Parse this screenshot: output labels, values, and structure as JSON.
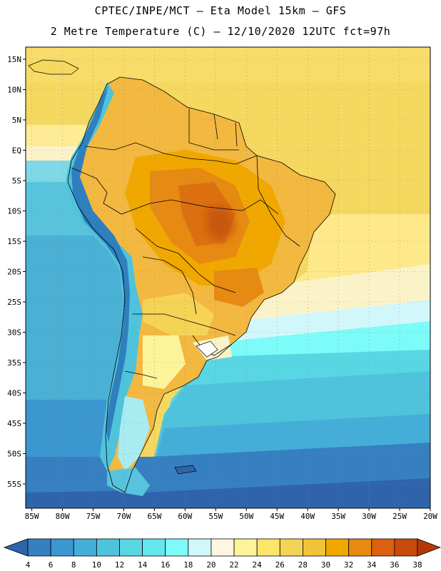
{
  "header": {
    "line1": "CPTEC/INPE/MCT –  Eta Model 15km – GFS",
    "line2": "2 Metre Temperature (C) – 12/10/2020 12UTC fct=97h"
  },
  "map": {
    "lon_range": [
      -86,
      -20
    ],
    "lat_range": [
      -59,
      17
    ],
    "lat_ticks": [
      "15N",
      "10N",
      "5N",
      "EQ",
      "5S",
      "10S",
      "15S",
      "20S",
      "25S",
      "30S",
      "35S",
      "40S",
      "45S",
      "50S",
      "55S"
    ],
    "lon_ticks": [
      "85W",
      "80W",
      "75W",
      "70W",
      "65W",
      "60W",
      "55W",
      "50W",
      "45W",
      "40W",
      "35W",
      "30W",
      "25W",
      "20W"
    ]
  },
  "colorbar": {
    "labels": [
      "4",
      "6",
      "8",
      "10",
      "12",
      "14",
      "16",
      "18",
      "20",
      "22",
      "24",
      "26",
      "28",
      "30",
      "32",
      "34",
      "36",
      "38"
    ],
    "colors": [
      "#2f64ad",
      "#3680c2",
      "#3c96cf",
      "#44aed8",
      "#4fc3dc",
      "#58d6e4",
      "#64e6ee",
      "#7cfbf8",
      "#d2f7fb",
      "#fdf6e1",
      "#fdf49a",
      "#fde46a",
      "#f5d355",
      "#f0c33a",
      "#f0a800",
      "#e68a12",
      "#dc6010",
      "#c84a0c",
      "#b33a08"
    ]
  }
}
